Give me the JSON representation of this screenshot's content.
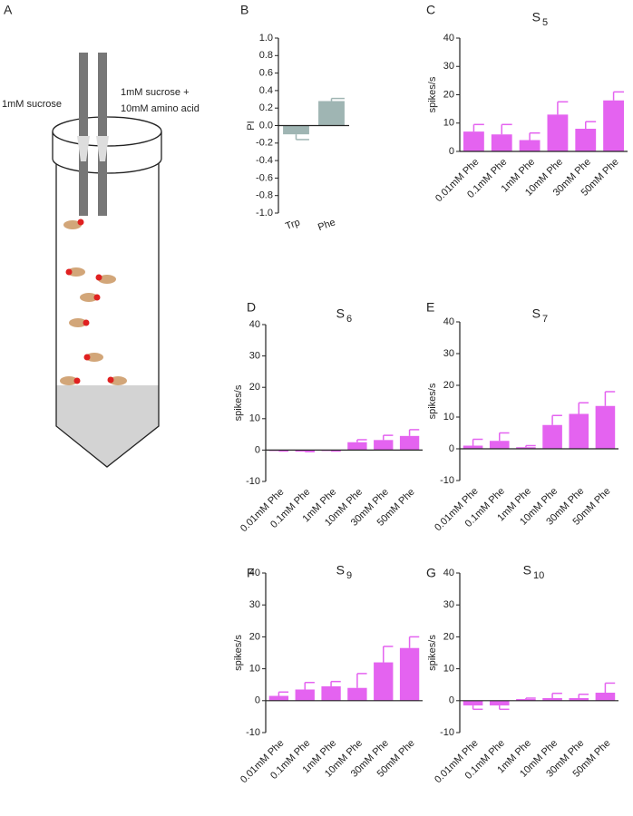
{
  "diagram": {
    "panel": "A",
    "left_label": "1mM sucrose",
    "right_label": [
      "1mM sucrose +",
      "10mM amino acid"
    ]
  },
  "chart_data": [
    {
      "type": "bar",
      "panel": "B",
      "ylabel": "PI",
      "color": "#9fb5b3",
      "categories": [
        "Trp",
        "Phe"
      ],
      "values": [
        -0.1,
        0.28
      ],
      "errors": [
        0.06,
        0.03
      ],
      "ylim": [
        -1,
        1
      ],
      "yticks": [
        {
          "value": -1,
          "label": "-1.0"
        },
        {
          "value": -0.8,
          "label": "-0.8"
        },
        {
          "value": -0.6,
          "label": "-0.6"
        },
        {
          "value": -0.4,
          "label": "-0.4"
        },
        {
          "value": -0.2,
          "label": "-0.2"
        },
        {
          "value": 0,
          "label": "0.0"
        },
        {
          "value": 0.2,
          "label": "0.2"
        },
        {
          "value": 0.4,
          "label": "0.4"
        },
        {
          "value": 0.6,
          "label": "0.6"
        },
        {
          "value": 0.8,
          "label": "0.8"
        },
        {
          "value": 1,
          "label": "1.0"
        }
      ]
    },
    {
      "type": "bar",
      "panel": "C",
      "title": "S",
      "title_sub": "5",
      "ylabel": "spikes/s",
      "color": "#e463f0",
      "categories": [
        "0.01mM Phe",
        "0.1mM Phe",
        "1mM Phe",
        "10mM Phe",
        "30mM Phe",
        "50mM Phe"
      ],
      "values": [
        7,
        6,
        4,
        13,
        8,
        18
      ],
      "errors": [
        2.5,
        3.5,
        2.5,
        4.5,
        2.5,
        3
      ],
      "ylim": [
        0,
        40
      ],
      "yticks": [
        0,
        10,
        20,
        30,
        40
      ]
    },
    {
      "type": "bar",
      "panel": "D",
      "title": "S",
      "title_sub": "6",
      "ylabel": "spikes/s",
      "color": "#e463f0",
      "categories": [
        "0.01mM Phe",
        "0.1mM Phe",
        "1mM Phe",
        "10mM Phe",
        "30mM Phe",
        "50mM Phe"
      ],
      "values": [
        -0.3,
        -0.5,
        -0.3,
        2.5,
        3.2,
        4.5
      ],
      "errors": [
        0,
        0,
        0,
        0.8,
        1.5,
        2
      ],
      "ylim": [
        -10,
        40
      ],
      "yticks": [
        -10,
        0,
        10,
        20,
        30,
        40
      ]
    },
    {
      "type": "bar",
      "panel": "E",
      "title": "S",
      "title_sub": "7",
      "ylabel": "spikes/s",
      "color": "#e463f0",
      "categories": [
        "0.01mM Phe",
        "0.1mM Phe",
        "1mM Phe",
        "10mM Phe",
        "30mM Phe",
        "50mM Phe"
      ],
      "values": [
        1,
        2.5,
        0.5,
        7.5,
        11,
        13.5
      ],
      "errors": [
        2,
        2.5,
        0.5,
        3,
        3.5,
        4.5
      ],
      "ylim": [
        -10,
        40
      ],
      "yticks": [
        -10,
        0,
        10,
        20,
        30,
        40
      ]
    },
    {
      "type": "bar",
      "panel": "F",
      "title": "S",
      "title_sub": "9",
      "ylabel": "spikes/s",
      "color": "#e463f0",
      "categories": [
        "0.01mM Phe",
        "0.1mM Phe",
        "1mM Phe",
        "10mM Phe",
        "30mM Phe",
        "50mM Phe"
      ],
      "values": [
        1.5,
        3.5,
        4.5,
        4,
        12,
        16.5
      ],
      "errors": [
        1.2,
        2.2,
        1.5,
        4.5,
        5,
        3.5
      ],
      "ylim": [
        -10,
        40
      ],
      "yticks": [
        -10,
        0,
        10,
        20,
        30,
        40
      ]
    },
    {
      "type": "bar",
      "panel": "G",
      "title": "S",
      "title_sub": "10",
      "ylabel": "spikes/s",
      "color": "#e463f0",
      "categories": [
        "0.01mM Phe",
        "0.1mM Phe",
        "1mM Phe",
        "10mM Phe",
        "30mM Phe",
        "50mM Phe"
      ],
      "values": [
        -1.5,
        -1.5,
        0.5,
        0.8,
        0.8,
        2.5
      ],
      "errors": [
        1.2,
        1.2,
        0.3,
        1.5,
        1.2,
        3
      ],
      "ylim": [
        -10,
        40
      ],
      "yticks": [
        -10,
        0,
        10,
        20,
        30,
        40
      ]
    }
  ]
}
